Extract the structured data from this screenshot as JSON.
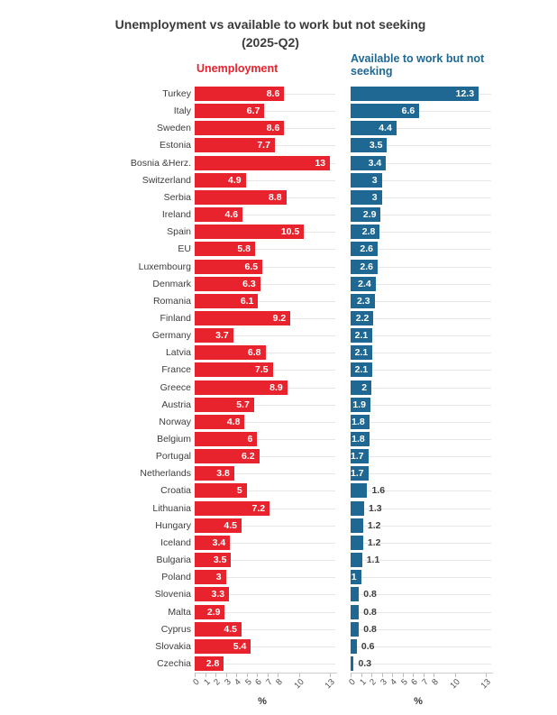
{
  "title": {
    "line1": "Unemployment vs available to work but not seeking",
    "line2": "(2025-Q2)"
  },
  "panel_headers": {
    "left": "Unemployment",
    "right": "Available to work but not seeking"
  },
  "colors": {
    "unemployment_bar": "#e8232d",
    "available_bar": "#1f6893",
    "title_text": "#3b3b3b",
    "label_text": "#3d3d3d",
    "value_inside_text": "#ffffff",
    "gridline": "#e6e6e6"
  },
  "axis": {
    "xlabel": "%",
    "ticks": [
      0,
      1,
      2,
      3,
      4,
      5,
      6,
      7,
      8,
      10,
      13
    ],
    "xlim": [
      0,
      13
    ]
  },
  "chart_data": {
    "type": "bar",
    "orientation": "horizontal",
    "title": "Unemployment vs available to work but not seeking (2025-Q2)",
    "xlabel": "%",
    "xlim": [
      0,
      13
    ],
    "xticks": [
      0,
      1,
      2,
      3,
      4,
      5,
      6,
      7,
      8,
      10,
      13
    ],
    "grid": "horizontal-row-lines",
    "legend_position": "panel-headers-top",
    "categories": [
      "Turkey",
      "Italy",
      "Sweden",
      "Estonia",
      "Bosnia &Herz.",
      "Switzerland",
      "Serbia",
      "Ireland",
      "Spain",
      "EU",
      "Luxembourg",
      "Denmark",
      "Romania",
      "Finland",
      "Germany",
      "Latvia",
      "France",
      "Greece",
      "Austria",
      "Norway",
      "Belgium",
      "Portugal",
      "Netherlands",
      "Croatia",
      "Lithuania",
      "Hungary",
      "Iceland",
      "Bulgaria",
      "Poland",
      "Slovenia",
      "Malta",
      "Cyprus",
      "Slovakia",
      "Czechia"
    ],
    "series": [
      {
        "name": "Unemployment",
        "color": "#e8232d",
        "values": [
          8.6,
          6.7,
          8.6,
          7.7,
          13,
          4.9,
          8.8,
          4.6,
          10.5,
          5.8,
          6.5,
          6.3,
          6.1,
          9.2,
          3.7,
          6.8,
          7.5,
          8.9,
          5.7,
          4.8,
          6,
          6.2,
          3.8,
          5,
          7.2,
          4.5,
          3.4,
          3.5,
          3,
          3.3,
          2.9,
          4.5,
          5.4,
          2.8
        ]
      },
      {
        "name": "Available to work but not seeking",
        "color": "#1f6893",
        "values": [
          12.3,
          6.6,
          4.4,
          3.5,
          3.4,
          3,
          3,
          2.9,
          2.8,
          2.6,
          2.6,
          2.4,
          2.3,
          2.2,
          2.1,
          2.1,
          2.1,
          2,
          1.9,
          1.8,
          1.8,
          1.7,
          1.7,
          1.6,
          1.3,
          1.2,
          1.2,
          1.1,
          1,
          0.8,
          0.8,
          0.8,
          0.6,
          0.3
        ]
      }
    ]
  }
}
